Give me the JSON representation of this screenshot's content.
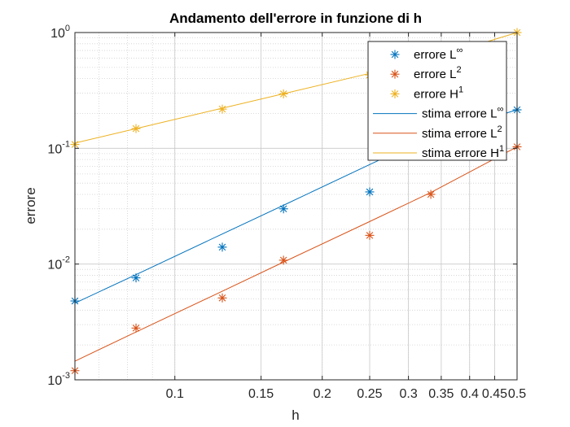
{
  "chart_data": {
    "type": "scatter",
    "scale": "loglog",
    "title": "Andamento dell'errore in funzione di h",
    "xlabel": "h",
    "ylabel": "errore",
    "xlim": [
      0.0625,
      0.5
    ],
    "ylim": [
      0.001,
      1
    ],
    "xticks": [
      0.1,
      0.15,
      0.2,
      0.25,
      0.3,
      0.35,
      0.4,
      0.45,
      0.5
    ],
    "xtick_labels": [
      "0.1",
      "0.15",
      "0.2",
      "0.25",
      "0.3",
      "0.35",
      "0.4",
      "0.45",
      "0.5"
    ],
    "yticks": [
      {
        "value": 0.001,
        "base": "10",
        "exp": "-3"
      },
      {
        "value": 0.01,
        "base": "10",
        "exp": "-2"
      },
      {
        "value": 0.1,
        "base": "10",
        "exp": "-1"
      },
      {
        "value": 1,
        "base": "10",
        "exp": "0"
      }
    ],
    "grid": true,
    "minor_grid": true,
    "legend_position": "top-right",
    "x": [
      0.0625,
      0.0833,
      0.125,
      0.1667,
      0.25,
      0.3333,
      0.5
    ],
    "series": [
      {
        "name": "errore L",
        "sup": "∞",
        "kind": "marker",
        "color": "#0072BD",
        "values": [
          0.0048,
          0.0076,
          0.014,
          0.03,
          0.042,
          0.098,
          0.215
        ]
      },
      {
        "name": "errore L",
        "sup": "2",
        "kind": "marker",
        "color": "#D95319",
        "values": [
          0.0012,
          0.0028,
          0.0051,
          0.0108,
          0.0177,
          0.04,
          0.103
        ]
      },
      {
        "name": "errore H",
        "sup": "1",
        "kind": "marker",
        "color": "#EDB120",
        "values": [
          0.108,
          0.148,
          0.218,
          0.295,
          0.43,
          0.62,
          1.0
        ]
      },
      {
        "name": "stima errore L",
        "sup": "∞",
        "kind": "line",
        "color": "#0072BD",
        "values": [
          0.0046,
          0.0081,
          0.0182,
          0.0322,
          0.0724,
          0.128,
          0.215
        ]
      },
      {
        "name": "stima errore L",
        "sup": "2",
        "kind": "line",
        "color": "#D95319",
        "values": [
          0.00145,
          0.00259,
          0.00583,
          0.0104,
          0.0233,
          0.0415,
          0.103
        ]
      },
      {
        "name": "stima errore H",
        "sup": "1",
        "kind": "line",
        "color": "#EDB120",
        "values": [
          0.111,
          0.148,
          0.222,
          0.296,
          0.444,
          0.592,
          1.0
        ]
      }
    ]
  }
}
